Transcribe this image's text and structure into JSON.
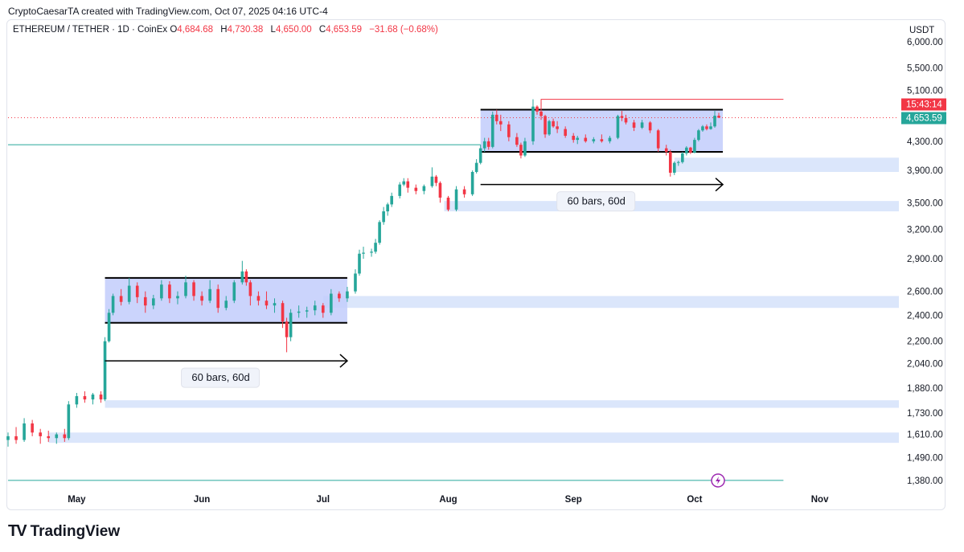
{
  "header": {
    "credit": "CryptoCaesarTA created with TradingView.com, Oct 07, 2025 04:16 UTC-4"
  },
  "symbol": {
    "title": "ETHEREUM / TETHER · 1D · CoinEx",
    "open_label": "O",
    "open": "4,684.68",
    "high_label": "H",
    "high": "4,730.38",
    "low_label": "L",
    "low": "4,650.00",
    "close_label": "C",
    "close": "4,653.59",
    "change": "−31.68 (−0.68%)"
  },
  "currency": "USDT",
  "footer": {
    "brand": "TradingView"
  },
  "colors": {
    "up": "#26a69a",
    "down": "#f23645",
    "range_fill": "#c2cdfb",
    "zone_fill": "#dbe6fb",
    "price_label": "#26a69a",
    "countdown_label": "#f23645",
    "horizontal_line": "#26a69a"
  },
  "chart_data": {
    "type": "candlestick",
    "x_ticks": [
      "May",
      "Jun",
      "Jul",
      "Aug",
      "Sep",
      "Oct",
      "Nov"
    ],
    "y_ticks": [
      "1,380.00",
      "1,490.00",
      "1,610.00",
      "1,730.00",
      "1,880.00",
      "2,040.00",
      "2,200.00",
      "2,400.00",
      "2,600.00",
      "2,900.00",
      "3,200.00",
      "3,500.00",
      "3,900.00",
      "4,300.00",
      "5,100.00",
      "5,500.00",
      "6,000.00"
    ],
    "y_scale": "log",
    "ylim": [
      1350,
      6100
    ],
    "xlim": [
      "2025-04-14",
      "2025-11-18"
    ],
    "last_price": "4,653.59",
    "countdown": "15:43:14",
    "candles": [
      {
        "d": "2025-04-14",
        "o": 1580,
        "h": 1620,
        "l": 1545,
        "c": 1600
      },
      {
        "d": "2025-04-16",
        "o": 1600,
        "h": 1650,
        "l": 1560,
        "c": 1580
      },
      {
        "d": "2025-04-18",
        "o": 1580,
        "h": 1700,
        "l": 1570,
        "c": 1670
      },
      {
        "d": "2025-04-20",
        "o": 1670,
        "h": 1690,
        "l": 1600,
        "c": 1620
      },
      {
        "d": "2025-04-22",
        "o": 1620,
        "h": 1640,
        "l": 1560,
        "c": 1600
      },
      {
        "d": "2025-04-24",
        "o": 1600,
        "h": 1630,
        "l": 1570,
        "c": 1590
      },
      {
        "d": "2025-04-26",
        "o": 1590,
        "h": 1620,
        "l": 1560,
        "c": 1610
      },
      {
        "d": "2025-04-28",
        "o": 1610,
        "h": 1640,
        "l": 1570,
        "c": 1590
      },
      {
        "d": "2025-04-29",
        "o": 1590,
        "h": 1800,
        "l": 1580,
        "c": 1780
      },
      {
        "d": "2025-05-01",
        "o": 1780,
        "h": 1850,
        "l": 1760,
        "c": 1830
      },
      {
        "d": "2025-05-03",
        "o": 1830,
        "h": 1860,
        "l": 1790,
        "c": 1810
      },
      {
        "d": "2025-05-05",
        "o": 1810,
        "h": 1850,
        "l": 1780,
        "c": 1840
      },
      {
        "d": "2025-05-07",
        "o": 1840,
        "h": 1860,
        "l": 1790,
        "c": 1810
      },
      {
        "d": "2025-05-08",
        "o": 1810,
        "h": 2230,
        "l": 1800,
        "c": 2200
      },
      {
        "d": "2025-05-09",
        "o": 2200,
        "h": 2450,
        "l": 2190,
        "c": 2420
      },
      {
        "d": "2025-05-10",
        "o": 2420,
        "h": 2580,
        "l": 2400,
        "c": 2560
      },
      {
        "d": "2025-05-12",
        "o": 2560,
        "h": 2620,
        "l": 2480,
        "c": 2510
      },
      {
        "d": "2025-05-14",
        "o": 2510,
        "h": 2720,
        "l": 2490,
        "c": 2650
      },
      {
        "d": "2025-05-16",
        "o": 2650,
        "h": 2680,
        "l": 2500,
        "c": 2550
      },
      {
        "d": "2025-05-18",
        "o": 2550,
        "h": 2600,
        "l": 2420,
        "c": 2480
      },
      {
        "d": "2025-05-20",
        "o": 2480,
        "h": 2570,
        "l": 2450,
        "c": 2540
      },
      {
        "d": "2025-05-22",
        "o": 2540,
        "h": 2700,
        "l": 2520,
        "c": 2660
      },
      {
        "d": "2025-05-24",
        "o": 2660,
        "h": 2690,
        "l": 2500,
        "c": 2540
      },
      {
        "d": "2025-05-26",
        "o": 2540,
        "h": 2600,
        "l": 2490,
        "c": 2560
      },
      {
        "d": "2025-05-28",
        "o": 2560,
        "h": 2740,
        "l": 2540,
        "c": 2680
      },
      {
        "d": "2025-05-30",
        "o": 2680,
        "h": 2700,
        "l": 2520,
        "c": 2560
      },
      {
        "d": "2025-06-01",
        "o": 2560,
        "h": 2600,
        "l": 2480,
        "c": 2520
      },
      {
        "d": "2025-06-03",
        "o": 2520,
        "h": 2700,
        "l": 2500,
        "c": 2620
      },
      {
        "d": "2025-06-05",
        "o": 2620,
        "h": 2660,
        "l": 2420,
        "c": 2460
      },
      {
        "d": "2025-06-07",
        "o": 2460,
        "h": 2560,
        "l": 2440,
        "c": 2520
      },
      {
        "d": "2025-06-09",
        "o": 2520,
        "h": 2700,
        "l": 2500,
        "c": 2680
      },
      {
        "d": "2025-06-11",
        "o": 2680,
        "h": 2880,
        "l": 2660,
        "c": 2780
      },
      {
        "d": "2025-06-12",
        "o": 2780,
        "h": 2800,
        "l": 2650,
        "c": 2680
      },
      {
        "d": "2025-06-13",
        "o": 2680,
        "h": 2700,
        "l": 2480,
        "c": 2560
      },
      {
        "d": "2025-06-15",
        "o": 2560,
        "h": 2600,
        "l": 2480,
        "c": 2520
      },
      {
        "d": "2025-06-17",
        "o": 2520,
        "h": 2600,
        "l": 2450,
        "c": 2480
      },
      {
        "d": "2025-06-19",
        "o": 2480,
        "h": 2540,
        "l": 2420,
        "c": 2500
      },
      {
        "d": "2025-06-21",
        "o": 2500,
        "h": 2520,
        "l": 2300,
        "c": 2350
      },
      {
        "d": "2025-06-22",
        "o": 2350,
        "h": 2380,
        "l": 2120,
        "c": 2230
      },
      {
        "d": "2025-06-23",
        "o": 2230,
        "h": 2450,
        "l": 2200,
        "c": 2420
      },
      {
        "d": "2025-06-25",
        "o": 2420,
        "h": 2480,
        "l": 2380,
        "c": 2430
      },
      {
        "d": "2025-06-27",
        "o": 2430,
        "h": 2470,
        "l": 2380,
        "c": 2440
      },
      {
        "d": "2025-06-29",
        "o": 2440,
        "h": 2520,
        "l": 2400,
        "c": 2480
      },
      {
        "d": "2025-07-01",
        "o": 2480,
        "h": 2500,
        "l": 2380,
        "c": 2420
      },
      {
        "d": "2025-07-03",
        "o": 2420,
        "h": 2620,
        "l": 2400,
        "c": 2580
      },
      {
        "d": "2025-07-05",
        "o": 2580,
        "h": 2600,
        "l": 2510,
        "c": 2540
      },
      {
        "d": "2025-07-07",
        "o": 2540,
        "h": 2640,
        "l": 2510,
        "c": 2600
      },
      {
        "d": "2025-07-09",
        "o": 2600,
        "h": 2800,
        "l": 2580,
        "c": 2760
      },
      {
        "d": "2025-07-10",
        "o": 2760,
        "h": 2990,
        "l": 2740,
        "c": 2950
      },
      {
        "d": "2025-07-11",
        "o": 2950,
        "h": 3020,
        "l": 2900,
        "c": 2960
      },
      {
        "d": "2025-07-13",
        "o": 2960,
        "h": 3000,
        "l": 2920,
        "c": 2970
      },
      {
        "d": "2025-07-14",
        "o": 2970,
        "h": 3100,
        "l": 2950,
        "c": 3060
      },
      {
        "d": "2025-07-15",
        "o": 3060,
        "h": 3300,
        "l": 3040,
        "c": 3280
      },
      {
        "d": "2025-07-16",
        "o": 3280,
        "h": 3450,
        "l": 3250,
        "c": 3400
      },
      {
        "d": "2025-07-17",
        "o": 3400,
        "h": 3500,
        "l": 3350,
        "c": 3480
      },
      {
        "d": "2025-07-18",
        "o": 3480,
        "h": 3620,
        "l": 3450,
        "c": 3580
      },
      {
        "d": "2025-07-20",
        "o": 3580,
        "h": 3750,
        "l": 3550,
        "c": 3720
      },
      {
        "d": "2025-07-21",
        "o": 3720,
        "h": 3800,
        "l": 3700,
        "c": 3760
      },
      {
        "d": "2025-07-22",
        "o": 3760,
        "h": 3800,
        "l": 3620,
        "c": 3680
      },
      {
        "d": "2025-07-24",
        "o": 3680,
        "h": 3720,
        "l": 3600,
        "c": 3640
      },
      {
        "d": "2025-07-26",
        "o": 3640,
        "h": 3720,
        "l": 3600,
        "c": 3700
      },
      {
        "d": "2025-07-28",
        "o": 3700,
        "h": 3940,
        "l": 3680,
        "c": 3820
      },
      {
        "d": "2025-07-29",
        "o": 3820,
        "h": 3840,
        "l": 3700,
        "c": 3740
      },
      {
        "d": "2025-07-30",
        "o": 3740,
        "h": 3760,
        "l": 3500,
        "c": 3560
      },
      {
        "d": "2025-08-01",
        "o": 3560,
        "h": 3580,
        "l": 3400,
        "c": 3420
      },
      {
        "d": "2025-08-03",
        "o": 3420,
        "h": 3700,
        "l": 3400,
        "c": 3660
      },
      {
        "d": "2025-08-05",
        "o": 3660,
        "h": 3700,
        "l": 3560,
        "c": 3600
      },
      {
        "d": "2025-08-07",
        "o": 3600,
        "h": 3900,
        "l": 3580,
        "c": 3880
      },
      {
        "d": "2025-08-08",
        "o": 3880,
        "h": 4050,
        "l": 3860,
        "c": 4000
      },
      {
        "d": "2025-08-09",
        "o": 4000,
        "h": 4250,
        "l": 3980,
        "c": 4200
      },
      {
        "d": "2025-08-10",
        "o": 4200,
        "h": 4350,
        "l": 4150,
        "c": 4300
      },
      {
        "d": "2025-08-11",
        "o": 4300,
        "h": 4350,
        "l": 4180,
        "c": 4220
      },
      {
        "d": "2025-08-12",
        "o": 4220,
        "h": 4750,
        "l": 4200,
        "c": 4700
      },
      {
        "d": "2025-08-13",
        "o": 4700,
        "h": 4780,
        "l": 4550,
        "c": 4600
      },
      {
        "d": "2025-08-14",
        "o": 4600,
        "h": 4700,
        "l": 4450,
        "c": 4550
      },
      {
        "d": "2025-08-16",
        "o": 4550,
        "h": 4600,
        "l": 4300,
        "c": 4360
      },
      {
        "d": "2025-08-18",
        "o": 4360,
        "h": 4420,
        "l": 4220,
        "c": 4250
      },
      {
        "d": "2025-08-19",
        "o": 4250,
        "h": 4280,
        "l": 4060,
        "c": 4100
      },
      {
        "d": "2025-08-20",
        "o": 4100,
        "h": 4350,
        "l": 4080,
        "c": 4300
      },
      {
        "d": "2025-08-22",
        "o": 4300,
        "h": 4950,
        "l": 4250,
        "c": 4830
      },
      {
        "d": "2025-08-23",
        "o": 4830,
        "h": 4850,
        "l": 4700,
        "c": 4750
      },
      {
        "d": "2025-08-24",
        "o": 4750,
        "h": 4900,
        "l": 4620,
        "c": 4680
      },
      {
        "d": "2025-08-25",
        "o": 4680,
        "h": 4700,
        "l": 4350,
        "c": 4400
      },
      {
        "d": "2025-08-26",
        "o": 4400,
        "h": 4620,
        "l": 4380,
        "c": 4600
      },
      {
        "d": "2025-08-27",
        "o": 4600,
        "h": 4640,
        "l": 4500,
        "c": 4520
      },
      {
        "d": "2025-08-28",
        "o": 4520,
        "h": 4600,
        "l": 4420,
        "c": 4480
      },
      {
        "d": "2025-08-30",
        "o": 4480,
        "h": 4520,
        "l": 4350,
        "c": 4380
      },
      {
        "d": "2025-09-01",
        "o": 4380,
        "h": 4420,
        "l": 4280,
        "c": 4320
      },
      {
        "d": "2025-09-02",
        "o": 4320,
        "h": 4380,
        "l": 4260,
        "c": 4350
      },
      {
        "d": "2025-09-04",
        "o": 4350,
        "h": 4400,
        "l": 4280,
        "c": 4300
      },
      {
        "d": "2025-09-06",
        "o": 4300,
        "h": 4360,
        "l": 4270,
        "c": 4330
      },
      {
        "d": "2025-09-08",
        "o": 4330,
        "h": 4400,
        "l": 4280,
        "c": 4300
      },
      {
        "d": "2025-09-10",
        "o": 4300,
        "h": 4380,
        "l": 4270,
        "c": 4350
      },
      {
        "d": "2025-09-12",
        "o": 4350,
        "h": 4700,
        "l": 4330,
        "c": 4680
      },
      {
        "d": "2025-09-13",
        "o": 4680,
        "h": 4760,
        "l": 4600,
        "c": 4650
      },
      {
        "d": "2025-09-14",
        "o": 4650,
        "h": 4700,
        "l": 4550,
        "c": 4580
      },
      {
        "d": "2025-09-16",
        "o": 4580,
        "h": 4620,
        "l": 4450,
        "c": 4500
      },
      {
        "d": "2025-09-18",
        "o": 4500,
        "h": 4620,
        "l": 4480,
        "c": 4580
      },
      {
        "d": "2025-09-20",
        "o": 4580,
        "h": 4600,
        "l": 4420,
        "c": 4460
      },
      {
        "d": "2025-09-22",
        "o": 4460,
        "h": 4480,
        "l": 4150,
        "c": 4200
      },
      {
        "d": "2025-09-24",
        "o": 4200,
        "h": 4250,
        "l": 4100,
        "c": 4150
      },
      {
        "d": "2025-09-25",
        "o": 4150,
        "h": 4180,
        "l": 3820,
        "c": 3870
      },
      {
        "d": "2025-09-26",
        "o": 3870,
        "h": 4020,
        "l": 3840,
        "c": 4000
      },
      {
        "d": "2025-09-27",
        "o": 4000,
        "h": 4030,
        "l": 3960,
        "c": 4010
      },
      {
        "d": "2025-09-28",
        "o": 4010,
        "h": 4150,
        "l": 3990,
        "c": 4130
      },
      {
        "d": "2025-09-29",
        "o": 4130,
        "h": 4230,
        "l": 4100,
        "c": 4210
      },
      {
        "d": "2025-09-30",
        "o": 4210,
        "h": 4220,
        "l": 4120,
        "c": 4140
      },
      {
        "d": "2025-10-01",
        "o": 4140,
        "h": 4350,
        "l": 4130,
        "c": 4320
      },
      {
        "d": "2025-10-02",
        "o": 4320,
        "h": 4480,
        "l": 4300,
        "c": 4460
      },
      {
        "d": "2025-10-03",
        "o": 4460,
        "h": 4540,
        "l": 4440,
        "c": 4520
      },
      {
        "d": "2025-10-04",
        "o": 4520,
        "h": 4550,
        "l": 4460,
        "c": 4480
      },
      {
        "d": "2025-10-05",
        "o": 4480,
        "h": 4580,
        "l": 4470,
        "c": 4520
      },
      {
        "d": "2025-10-06",
        "o": 4520,
        "h": 4760,
        "l": 4500,
        "c": 4684.68
      },
      {
        "d": "2025-10-07",
        "o": 4684.68,
        "h": 4730.38,
        "l": 4650,
        "c": 4653.59
      }
    ],
    "range_boxes": [
      {
        "start": "2025-05-08",
        "end": "2025-07-07",
        "top": 2720,
        "bottom": 2340
      },
      {
        "start": "2025-08-09",
        "end": "2025-10-08",
        "top": 4780,
        "bottom": 4150
      }
    ],
    "zones": [
      {
        "start": "2025-04-24",
        "top": 1620,
        "bottom": 1565
      },
      {
        "start": "2025-05-08",
        "top": 1805,
        "bottom": 1760
      },
      {
        "start": "2025-07-01",
        "top": 2560,
        "bottom": 2460
      },
      {
        "start": "2025-07-31",
        "top": 3520,
        "bottom": 3400
      },
      {
        "start": "2025-09-26",
        "top": 4070,
        "bottom": 3880
      }
    ],
    "measure_arrows": [
      {
        "start": "2025-05-08",
        "end": "2025-07-07",
        "price": 2060,
        "label": "60 bars, 60d"
      },
      {
        "start": "2025-08-09",
        "end": "2025-10-08",
        "price": 3720,
        "label": "60 bars, 60d"
      }
    ],
    "horizontal_lines": [
      {
        "price": 4250,
        "start": "2025-04-14",
        "end": "2025-08-09",
        "color": "#26a69a"
      },
      {
        "price": 1380,
        "start": "2025-04-14",
        "end": "2025-10-23",
        "color": "#26a69a"
      }
    ],
    "resistance_line": {
      "price": 4950,
      "start": "2025-08-24",
      "end": "2025-10-23",
      "color": "#f23645"
    },
    "last_price_line": {
      "price": 4653.59
    }
  }
}
